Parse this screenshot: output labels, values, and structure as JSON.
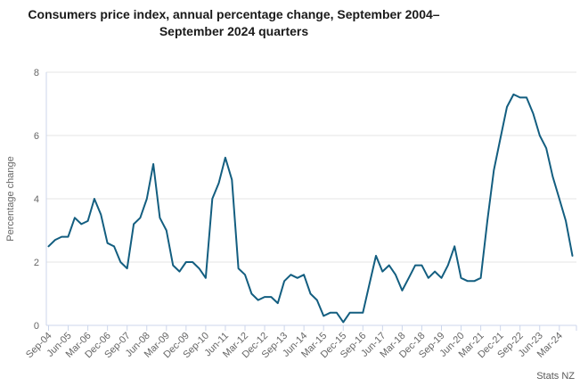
{
  "title": "Consumers price index, annual percentage change, September 2004–September 2024 quarters",
  "source": "Stats NZ",
  "colors": {
    "line": "#135e80",
    "axis": "#ccd6eb",
    "grid": "#e6e6e6",
    "axis_label": "#666666",
    "title": "#1a1a1a",
    "source": "#595959"
  },
  "chart_data": {
    "type": "line",
    "title": "Consumers price index, annual percentage change, September 2004–September 2024 quarters",
    "xlabel": "",
    "ylabel": "Percentage change",
    "ylim": [
      0,
      8
    ],
    "yticks": [
      0,
      2,
      4,
      6,
      8
    ],
    "grid": "horizontal",
    "legend": "none",
    "x_tick_interval": 3,
    "quarters": [
      "Sep-04",
      "Dec-04",
      "Mar-05",
      "Jun-05",
      "Sep-05",
      "Dec-05",
      "Mar-06",
      "Jun-06",
      "Sep-06",
      "Dec-06",
      "Mar-07",
      "Jun-07",
      "Sep-07",
      "Dec-07",
      "Mar-08",
      "Jun-08",
      "Sep-08",
      "Dec-08",
      "Mar-09",
      "Jun-09",
      "Sep-09",
      "Dec-09",
      "Mar-10",
      "Jun-10",
      "Sep-10",
      "Dec-10",
      "Mar-11",
      "Jun-11",
      "Sep-11",
      "Dec-11",
      "Mar-12",
      "Jun-12",
      "Sep-12",
      "Dec-12",
      "Mar-13",
      "Jun-13",
      "Sep-13",
      "Dec-13",
      "Mar-14",
      "Jun-14",
      "Sep-14",
      "Dec-14",
      "Mar-15",
      "Jun-15",
      "Sep-15",
      "Dec-15",
      "Mar-16",
      "Jun-16",
      "Sep-16",
      "Dec-16",
      "Mar-17",
      "Jun-17",
      "Sep-17",
      "Dec-17",
      "Mar-18",
      "Jun-18",
      "Sep-18",
      "Dec-18",
      "Mar-19",
      "Jun-19",
      "Sep-19",
      "Dec-19",
      "Mar-20",
      "Jun-20",
      "Sep-20",
      "Dec-20",
      "Mar-21",
      "Jun-21",
      "Sep-21",
      "Dec-21",
      "Mar-22",
      "Jun-22",
      "Sep-22",
      "Dec-22",
      "Mar-23",
      "Jun-23",
      "Sep-23",
      "Dec-23",
      "Mar-24",
      "Jun-24",
      "Sep-24"
    ],
    "values": [
      2.5,
      2.7,
      2.8,
      2.8,
      3.4,
      3.2,
      3.3,
      4.0,
      3.5,
      2.6,
      2.5,
      2.0,
      1.8,
      3.2,
      3.4,
      4.0,
      5.1,
      3.4,
      3.0,
      1.9,
      1.7,
      2.0,
      2.0,
      1.8,
      1.5,
      4.0,
      4.5,
      5.3,
      4.6,
      1.8,
      1.6,
      1.0,
      0.8,
      0.9,
      0.9,
      0.7,
      1.4,
      1.6,
      1.5,
      1.6,
      1.0,
      0.8,
      0.3,
      0.4,
      0.4,
      0.1,
      0.4,
      0.4,
      0.4,
      1.3,
      2.2,
      1.7,
      1.9,
      1.6,
      1.1,
      1.5,
      1.9,
      1.9,
      1.5,
      1.7,
      1.5,
      1.9,
      2.5,
      1.5,
      1.4,
      1.4,
      1.5,
      3.3,
      4.9,
      5.9,
      6.9,
      7.3,
      7.2,
      7.2,
      6.7,
      6.0,
      5.6,
      4.7,
      4.0,
      3.3,
      2.2
    ],
    "tick_labels": [
      "Sep-04",
      "Jun-05",
      "Mar-06",
      "Dec-06",
      "Sep-07",
      "Jun-08",
      "Mar-09",
      "Dec-09",
      "Sep-10",
      "Jun-11",
      "Mar-12",
      "Dec-12",
      "Sep-13",
      "Jun-14",
      "Mar-15",
      "Dec-15",
      "Sep-16",
      "Jun-17",
      "Mar-18",
      "Dec-18",
      "Sep-19",
      "Jun-20",
      "Mar-21",
      "Dec-21",
      "Sep-22",
      "Jun-23",
      "Mar-24"
    ]
  }
}
